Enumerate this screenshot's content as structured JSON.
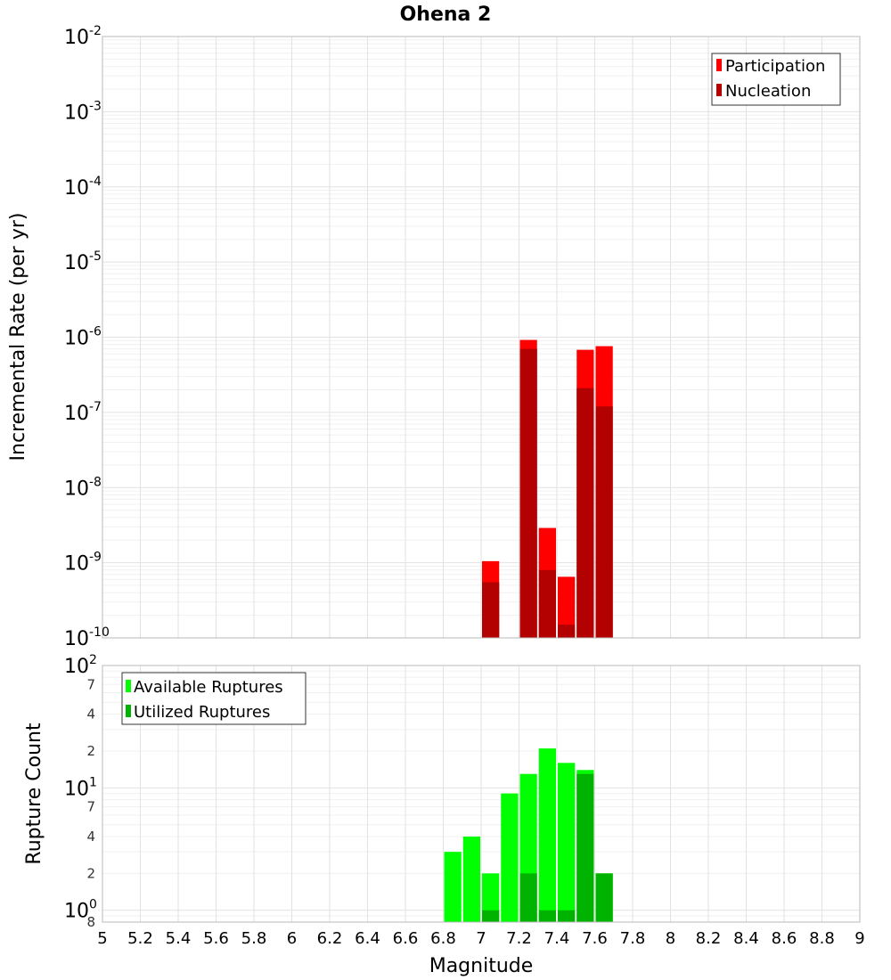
{
  "chart_data": [
    {
      "type": "bar",
      "title": "Ohena 2",
      "xlabel": "",
      "ylabel": "Incremental Rate (per yr)",
      "yscale": "log",
      "ylim": [
        1e-10,
        0.01
      ],
      "xlim": [
        5,
        9
      ],
      "legend_position": "top-right",
      "grid": true,
      "y_tick_exponents": [
        "-2",
        "-3",
        "-4",
        "-5",
        "-6",
        "-7",
        "-8",
        "-9",
        "-10"
      ],
      "y_tick_base": "10",
      "series": [
        {
          "name": "Participation",
          "color": "#ff0000",
          "x": [
            7.05,
            7.25,
            7.35,
            7.45,
            7.55,
            7.65
          ],
          "values": [
            1.05e-09,
            9.2e-07,
            2.9e-09,
            6.5e-10,
            6.8e-07,
            7.6e-07
          ]
        },
        {
          "name": "Nucleation",
          "color": "#b30000",
          "x": [
            7.05,
            7.25,
            7.35,
            7.45,
            7.55,
            7.65
          ],
          "values": [
            5.5e-10,
            7e-07,
            8e-10,
            1.5e-10,
            2.1e-07,
            1.2e-07
          ]
        }
      ]
    },
    {
      "type": "bar",
      "xlabel": "Magnitude",
      "ylabel": "Rupture Count",
      "yscale": "log",
      "ylim": [
        0.8,
        100
      ],
      "xlim": [
        5,
        9
      ],
      "legend_position": "top-left",
      "grid": true,
      "x_tick_labels": [
        "5",
        "5.2",
        "5.4",
        "5.6",
        "5.8",
        "6",
        "6.2",
        "6.4",
        "6.6",
        "6.8",
        "7",
        "7.2",
        "7.4",
        "7.6",
        "7.8",
        "8",
        "8.2",
        "8.4",
        "8.6",
        "8.8",
        "9"
      ],
      "y_decade_ticks": [
        {
          "value": 100,
          "base": "10",
          "exp": "2"
        },
        {
          "value": 10,
          "base": "10",
          "exp": "1"
        },
        {
          "value": 1,
          "base": "10",
          "exp": "0"
        }
      ],
      "y_minor_ticks": [
        {
          "value": 70,
          "label": "7"
        },
        {
          "value": 40,
          "label": "4"
        },
        {
          "value": 20,
          "label": "2"
        },
        {
          "value": 7,
          "label": "7"
        },
        {
          "value": 4,
          "label": "4"
        },
        {
          "value": 2,
          "label": "2"
        },
        {
          "value": 0.8,
          "label": "8"
        }
      ],
      "series": [
        {
          "name": "Available Ruptures",
          "color": "#00ff00",
          "x": [
            6.85,
            6.95,
            7.05,
            7.15,
            7.25,
            7.35,
            7.45,
            7.55,
            7.65
          ],
          "values": [
            3,
            4,
            2,
            9,
            13,
            21,
            16,
            14,
            2
          ]
        },
        {
          "name": "Utilized Ruptures",
          "color": "#00b300",
          "x": [
            6.85,
            6.95,
            7.05,
            7.15,
            7.25,
            7.35,
            7.45,
            7.55,
            7.65
          ],
          "values": [
            0,
            0,
            1,
            0,
            2,
            1,
            1,
            13,
            2
          ]
        }
      ]
    }
  ]
}
